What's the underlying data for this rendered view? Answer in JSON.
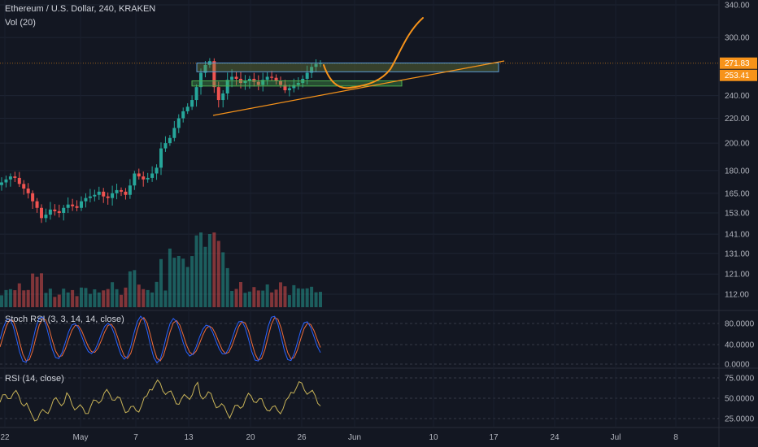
{
  "header": {
    "title": "Ethereum / U.S. Dollar, 240, KRAKEN",
    "volume_label": "Vol (20)"
  },
  "panes": {
    "stoch_label": "Stoch RSI (3, 3, 14, 14, close)",
    "rsi_label": "RSI (14, close)"
  },
  "price_axis": {
    "ticks": [
      "340.00",
      "300.00",
      "271.83",
      "253.41",
      "240.00",
      "220.00",
      "200.00",
      "180.00",
      "165.00",
      "153.00",
      "141.00",
      "131.00",
      "121.00",
      "112.00"
    ],
    "tick_values": [
      340,
      300,
      null,
      null,
      240,
      220,
      200,
      180,
      165,
      153,
      141,
      131,
      121,
      112
    ],
    "current_price": "271.83",
    "second_badge": "253.41",
    "current_color": "#f7931a"
  },
  "stoch_axis": {
    "ticks": [
      "80.0000",
      "40.0000",
      "0.0000"
    ]
  },
  "rsi_axis": {
    "ticks": [
      "75.0000",
      "50.0000",
      "25.0000"
    ]
  },
  "time_axis": {
    "labels": [
      "22",
      "May",
      "7",
      "13",
      "20",
      "26",
      "Jun",
      "10",
      "17",
      "24",
      "Jul",
      "8"
    ]
  },
  "chart_data": {
    "type": "candlestick",
    "symbol": "ETH/USD",
    "title": "Ethereum / U.S. Dollar, 240, KRAKEN",
    "ylim": [
      105,
      345
    ],
    "y_scale": "log",
    "grid": true,
    "series_close": [
      172,
      174,
      176,
      175,
      171,
      168,
      165,
      160,
      156,
      150,
      152,
      155,
      154,
      153,
      156,
      158,
      157,
      156,
      160,
      162,
      163,
      164,
      166,
      163,
      162,
      165,
      167,
      166,
      164,
      170,
      178,
      176,
      174,
      175,
      178,
      182,
      196,
      200,
      204,
      212,
      220,
      226,
      230,
      236,
      248,
      262,
      270,
      274,
      248,
      236,
      242,
      255,
      258,
      256,
      252,
      254,
      256,
      253,
      250,
      255,
      258,
      257,
      254,
      250,
      245,
      247,
      250,
      252,
      256,
      262,
      268,
      271,
      272
    ],
    "levels": {
      "resistance_top": 272,
      "resistance_bottom": 263,
      "support_top": 254,
      "support_bottom": 249
    },
    "colors": {
      "up": "#26a69a",
      "down": "#ef5350",
      "resistance_box": "#5b9bd5",
      "support_box": "#4caf50",
      "trendline": "#f7931a",
      "projection": "#f7931a"
    }
  }
}
